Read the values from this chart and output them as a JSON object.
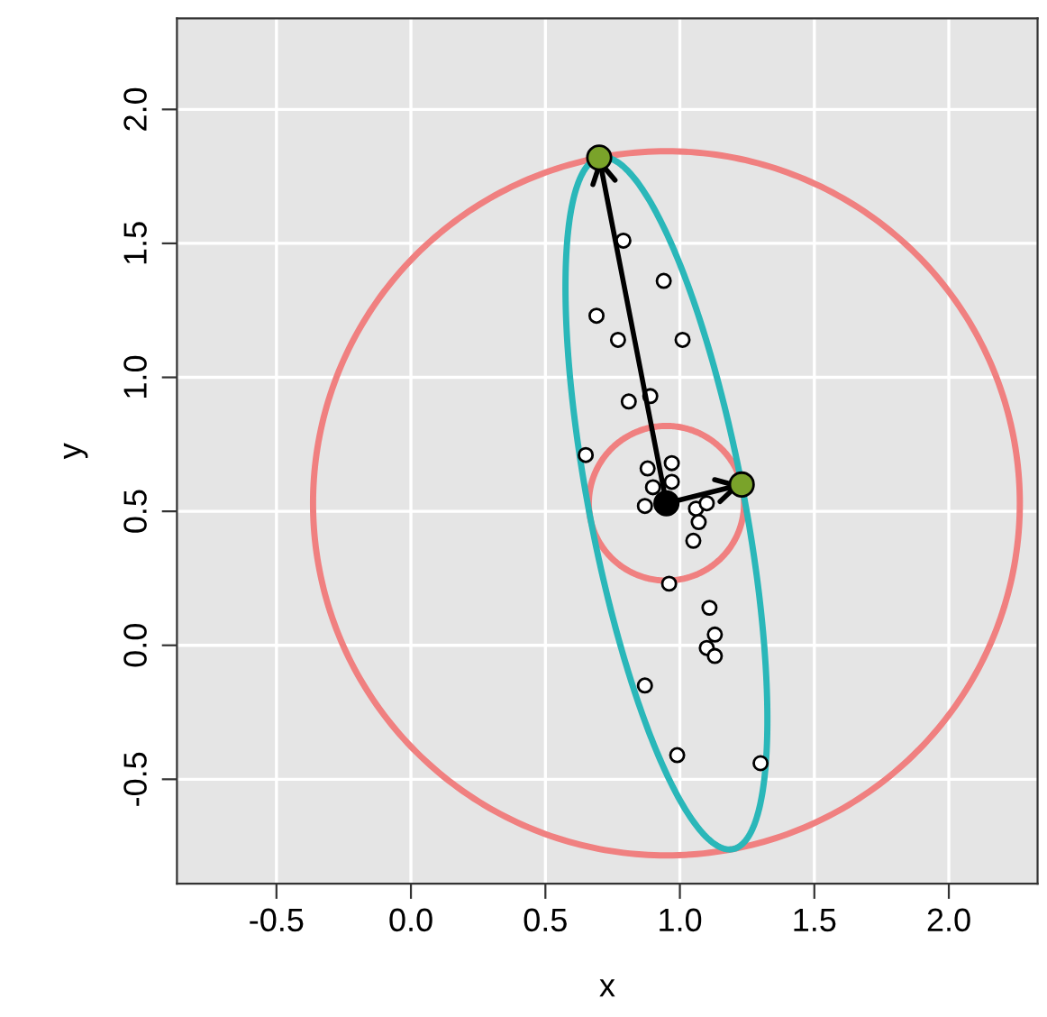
{
  "chart_data": {
    "type": "scatter",
    "xlabel": "x",
    "ylabel": "y",
    "xlim": [
      -0.87,
      2.33
    ],
    "ylim": [
      -0.89,
      2.34
    ],
    "xticks": [
      {
        "value": -0.5,
        "label": "-0.5"
      },
      {
        "value": 0.0,
        "label": "0.0"
      },
      {
        "value": 0.5,
        "label": "0.5"
      },
      {
        "value": 1.0,
        "label": "1.0"
      },
      {
        "value": 1.5,
        "label": "1.5"
      },
      {
        "value": 2.0,
        "label": "2.0"
      }
    ],
    "yticks": [
      {
        "value": -0.5,
        "label": "-0.5"
      },
      {
        "value": 0.0,
        "label": "0.0"
      },
      {
        "value": 0.5,
        "label": "0.5"
      },
      {
        "value": 1.0,
        "label": "1.0"
      },
      {
        "value": 1.5,
        "label": "1.5"
      },
      {
        "value": 2.0,
        "label": "2.0"
      }
    ],
    "grid": true,
    "legend": false,
    "series": [
      {
        "color": "#ffffff",
        "marker": "circle",
        "x": [
          0.79,
          0.94,
          0.69,
          0.77,
          1.01,
          0.81,
          0.89,
          0.65,
          0.88,
          0.97,
          0.9,
          0.97,
          0.87,
          1.06,
          1.1,
          1.07,
          1.05,
          0.96,
          1.11,
          1.13,
          1.1,
          1.13,
          0.87,
          0.99,
          1.3
        ],
        "values": [
          1.51,
          1.36,
          1.23,
          1.14,
          1.14,
          0.91,
          0.93,
          0.71,
          0.66,
          0.68,
          0.59,
          0.61,
          0.52,
          0.51,
          0.53,
          0.46,
          0.39,
          0.23,
          0.14,
          0.04,
          -0.01,
          -0.04,
          -0.15,
          -0.41,
          -0.44
        ]
      },
      {
        "color": "#000000",
        "marker": "circle",
        "x": [
          0.95
        ],
        "values": [
          0.53
        ]
      },
      {
        "color": "#7aa32a",
        "marker": "circle",
        "x": [
          0.7,
          1.23
        ],
        "values": [
          1.82,
          0.6
        ]
      }
    ]
  }
}
